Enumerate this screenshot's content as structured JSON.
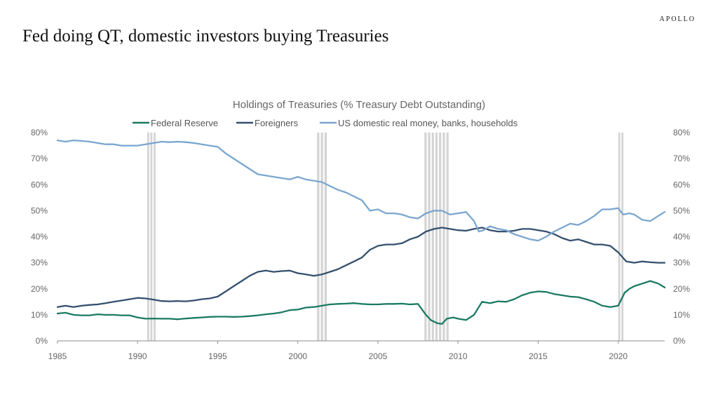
{
  "brand": "APOLLO",
  "headline": "Fed doing QT, domestic investors buying Treasuries",
  "colors": {
    "fed": "#1b7a63",
    "foreign": "#34506e",
    "domestic": "#7aa6cf",
    "recession": "#d4d4d4",
    "axis": "#8c8c8c"
  },
  "chart_data": {
    "type": "line",
    "title": "Holdings of Treasuries (% Treasury Debt Outstanding)",
    "xlim": [
      1985,
      2022.9
    ],
    "ylim": [
      0,
      80
    ],
    "x_ticks": [
      "1985",
      "1990",
      "1995",
      "2000",
      "2005",
      "2010",
      "2015",
      "2020"
    ],
    "x_tick_values": [
      1985,
      1990,
      1995,
      2000,
      2005,
      2010,
      2015,
      2020
    ],
    "y_ticks_left": [
      "0%",
      "10%",
      "20%",
      "30%",
      "40%",
      "50%",
      "60%",
      "70%",
      "80%"
    ],
    "y_ticks_right": [
      "0%",
      "10%",
      "20%",
      "30%",
      "40%",
      "50%",
      "60%",
      "70%",
      "80%"
    ],
    "y_tick_values": [
      0,
      10,
      20,
      30,
      40,
      50,
      60,
      70,
      80
    ],
    "legend_position": "top",
    "recessions": [
      [
        1990.6,
        1991.2
      ],
      [
        2001.2,
        2001.9
      ],
      [
        2007.9,
        2009.5
      ],
      [
        2020.0,
        2020.4
      ]
    ],
    "series": [
      {
        "name": "Federal Reserve",
        "color_key": "fed",
        "points": [
          [
            1985,
            10.5
          ],
          [
            1985.5,
            10.8
          ],
          [
            1986,
            10.0
          ],
          [
            1986.5,
            9.8
          ],
          [
            1987,
            9.8
          ],
          [
            1987.5,
            10.2
          ],
          [
            1988,
            10.0
          ],
          [
            1988.5,
            10.0
          ],
          [
            1989,
            9.8
          ],
          [
            1989.5,
            9.8
          ],
          [
            1990,
            9.0
          ],
          [
            1990.5,
            8.5
          ],
          [
            1991,
            8.6
          ],
          [
            1991.5,
            8.5
          ],
          [
            1992,
            8.5
          ],
          [
            1992.5,
            8.3
          ],
          [
            1993,
            8.6
          ],
          [
            1993.5,
            8.8
          ],
          [
            1994,
            9.0
          ],
          [
            1994.5,
            9.2
          ],
          [
            1995,
            9.3
          ],
          [
            1995.5,
            9.3
          ],
          [
            1996,
            9.2
          ],
          [
            1996.5,
            9.3
          ],
          [
            1997,
            9.5
          ],
          [
            1997.5,
            9.8
          ],
          [
            1998,
            10.2
          ],
          [
            1998.5,
            10.5
          ],
          [
            1999,
            11.0
          ],
          [
            1999.5,
            11.8
          ],
          [
            2000,
            12.0
          ],
          [
            2000.5,
            12.8
          ],
          [
            2001,
            13.0
          ],
          [
            2001.5,
            13.5
          ],
          [
            2002,
            14.0
          ],
          [
            2002.5,
            14.2
          ],
          [
            2003,
            14.3
          ],
          [
            2003.5,
            14.5
          ],
          [
            2004,
            14.2
          ],
          [
            2004.5,
            14.0
          ],
          [
            2005,
            14.0
          ],
          [
            2005.5,
            14.2
          ],
          [
            2006,
            14.2
          ],
          [
            2006.5,
            14.3
          ],
          [
            2007,
            14.0
          ],
          [
            2007.5,
            14.2
          ],
          [
            2008,
            10.0
          ],
          [
            2008.3,
            8.0
          ],
          [
            2008.7,
            6.8
          ],
          [
            2009,
            6.5
          ],
          [
            2009.3,
            8.5
          ],
          [
            2009.7,
            9.0
          ],
          [
            2010,
            8.5
          ],
          [
            2010.5,
            8.0
          ],
          [
            2011,
            10.0
          ],
          [
            2011.3,
            13.0
          ],
          [
            2011.5,
            15.0
          ],
          [
            2012,
            14.5
          ],
          [
            2012.5,
            15.2
          ],
          [
            2013,
            15.0
          ],
          [
            2013.5,
            16.0
          ],
          [
            2014,
            17.5
          ],
          [
            2014.5,
            18.5
          ],
          [
            2015,
            19.0
          ],
          [
            2015.5,
            18.8
          ],
          [
            2016,
            18.0
          ],
          [
            2016.5,
            17.5
          ],
          [
            2017,
            17.0
          ],
          [
            2017.5,
            16.8
          ],
          [
            2018,
            16.0
          ],
          [
            2018.5,
            15.0
          ],
          [
            2019,
            13.5
          ],
          [
            2019.5,
            13.0
          ],
          [
            2020,
            13.5
          ],
          [
            2020.4,
            18.5
          ],
          [
            2020.7,
            20.0
          ],
          [
            2021,
            21.0
          ],
          [
            2021.5,
            22.0
          ],
          [
            2022,
            23.0
          ],
          [
            2022.5,
            22.0
          ],
          [
            2022.9,
            20.5
          ]
        ]
      },
      {
        "name": "Foreigners",
        "color_key": "foreign",
        "points": [
          [
            1985,
            13.0
          ],
          [
            1985.5,
            13.5
          ],
          [
            1986,
            13.0
          ],
          [
            1986.5,
            13.5
          ],
          [
            1987,
            13.8
          ],
          [
            1987.5,
            14.0
          ],
          [
            1988,
            14.5
          ],
          [
            1988.5,
            15.0
          ],
          [
            1989,
            15.5
          ],
          [
            1989.5,
            16.0
          ],
          [
            1990,
            16.5
          ],
          [
            1990.5,
            16.3
          ],
          [
            1991,
            15.8
          ],
          [
            1991.5,
            15.3
          ],
          [
            1992,
            15.2
          ],
          [
            1992.5,
            15.3
          ],
          [
            1993,
            15.2
          ],
          [
            1993.5,
            15.5
          ],
          [
            1994,
            16.0
          ],
          [
            1994.5,
            16.3
          ],
          [
            1995,
            17.0
          ],
          [
            1995.5,
            19.0
          ],
          [
            1996,
            21.0
          ],
          [
            1996.5,
            23.0
          ],
          [
            1997,
            25.0
          ],
          [
            1997.5,
            26.5
          ],
          [
            1998,
            27.0
          ],
          [
            1998.5,
            26.5
          ],
          [
            1999,
            26.8
          ],
          [
            1999.5,
            27.0
          ],
          [
            2000,
            26.0
          ],
          [
            2000.5,
            25.5
          ],
          [
            2001,
            25.0
          ],
          [
            2001.5,
            25.5
          ],
          [
            2002,
            26.5
          ],
          [
            2002.5,
            27.5
          ],
          [
            2003,
            29.0
          ],
          [
            2003.5,
            30.5
          ],
          [
            2004,
            32.0
          ],
          [
            2004.5,
            35.0
          ],
          [
            2005,
            36.5
          ],
          [
            2005.5,
            37.0
          ],
          [
            2006,
            37.0
          ],
          [
            2006.5,
            37.5
          ],
          [
            2007,
            39.0
          ],
          [
            2007.5,
            40.0
          ],
          [
            2008,
            42.0
          ],
          [
            2008.5,
            43.0
          ],
          [
            2009,
            43.5
          ],
          [
            2009.5,
            43.0
          ],
          [
            2010,
            42.5
          ],
          [
            2010.5,
            42.3
          ],
          [
            2011,
            43.0
          ],
          [
            2011.5,
            43.5
          ],
          [
            2012,
            42.5
          ],
          [
            2012.5,
            42.0
          ],
          [
            2013,
            42.0
          ],
          [
            2013.5,
            42.3
          ],
          [
            2014,
            43.0
          ],
          [
            2014.5,
            43.0
          ],
          [
            2015,
            42.5
          ],
          [
            2015.5,
            42.0
          ],
          [
            2016,
            41.0
          ],
          [
            2016.5,
            39.5
          ],
          [
            2017,
            38.5
          ],
          [
            2017.5,
            39.0
          ],
          [
            2018,
            38.0
          ],
          [
            2018.5,
            37.0
          ],
          [
            2019,
            37.0
          ],
          [
            2019.5,
            36.5
          ],
          [
            2020,
            34.0
          ],
          [
            2020.5,
            30.5
          ],
          [
            2021,
            30.0
          ],
          [
            2021.5,
            30.5
          ],
          [
            2022,
            30.2
          ],
          [
            2022.5,
            30.0
          ],
          [
            2022.9,
            30.0
          ]
        ]
      },
      {
        "name": "US domestic real money, banks, households",
        "color_key": "domestic",
        "points": [
          [
            1985,
            77.0
          ],
          [
            1985.5,
            76.5
          ],
          [
            1986,
            77.0
          ],
          [
            1986.5,
            76.8
          ],
          [
            1987,
            76.5
          ],
          [
            1987.5,
            76.0
          ],
          [
            1988,
            75.5
          ],
          [
            1988.5,
            75.5
          ],
          [
            1989,
            75.0
          ],
          [
            1989.5,
            75.0
          ],
          [
            1990,
            75.0
          ],
          [
            1990.5,
            75.5
          ],
          [
            1991,
            76.0
          ],
          [
            1991.5,
            76.5
          ],
          [
            1992,
            76.3
          ],
          [
            1992.5,
            76.5
          ],
          [
            1993,
            76.3
          ],
          [
            1993.5,
            76.0
          ],
          [
            1994,
            75.5
          ],
          [
            1994.5,
            75.0
          ],
          [
            1995,
            74.5
          ],
          [
            1995.5,
            72.0
          ],
          [
            1996,
            70.0
          ],
          [
            1996.5,
            68.0
          ],
          [
            1997,
            66.0
          ],
          [
            1997.5,
            64.0
          ],
          [
            1998,
            63.5
          ],
          [
            1998.5,
            63.0
          ],
          [
            1999,
            62.5
          ],
          [
            1999.5,
            62.0
          ],
          [
            2000,
            63.0
          ],
          [
            2000.5,
            62.0
          ],
          [
            2001,
            61.5
          ],
          [
            2001.5,
            61.0
          ],
          [
            2002,
            59.5
          ],
          [
            2002.5,
            58.0
          ],
          [
            2003,
            57.0
          ],
          [
            2003.5,
            55.5
          ],
          [
            2004,
            54.0
          ],
          [
            2004.5,
            50.0
          ],
          [
            2005,
            50.5
          ],
          [
            2005.5,
            49.0
          ],
          [
            2006,
            49.0
          ],
          [
            2006.5,
            48.5
          ],
          [
            2007,
            47.5
          ],
          [
            2007.5,
            47.0
          ],
          [
            2008,
            49.0
          ],
          [
            2008.5,
            50.0
          ],
          [
            2009,
            50.0
          ],
          [
            2009.5,
            48.5
          ],
          [
            2010,
            49.0
          ],
          [
            2010.5,
            49.5
          ],
          [
            2011,
            46.0
          ],
          [
            2011.3,
            42.0
          ],
          [
            2011.6,
            42.5
          ],
          [
            2012,
            44.0
          ],
          [
            2012.5,
            43.0
          ],
          [
            2013,
            42.5
          ],
          [
            2013.5,
            41.0
          ],
          [
            2014,
            40.0
          ],
          [
            2014.5,
            39.0
          ],
          [
            2015,
            38.5
          ],
          [
            2015.5,
            40.0
          ],
          [
            2016,
            42.0
          ],
          [
            2016.5,
            43.5
          ],
          [
            2017,
            45.0
          ],
          [
            2017.5,
            44.5
          ],
          [
            2018,
            46.0
          ],
          [
            2018.5,
            48.0
          ],
          [
            2019,
            50.5
          ],
          [
            2019.5,
            50.5
          ],
          [
            2020,
            51.0
          ],
          [
            2020.3,
            48.5
          ],
          [
            2020.7,
            49.0
          ],
          [
            2021,
            48.5
          ],
          [
            2021.5,
            46.5
          ],
          [
            2022,
            46.0
          ],
          [
            2022.5,
            48.0
          ],
          [
            2022.9,
            49.5
          ]
        ]
      }
    ]
  }
}
